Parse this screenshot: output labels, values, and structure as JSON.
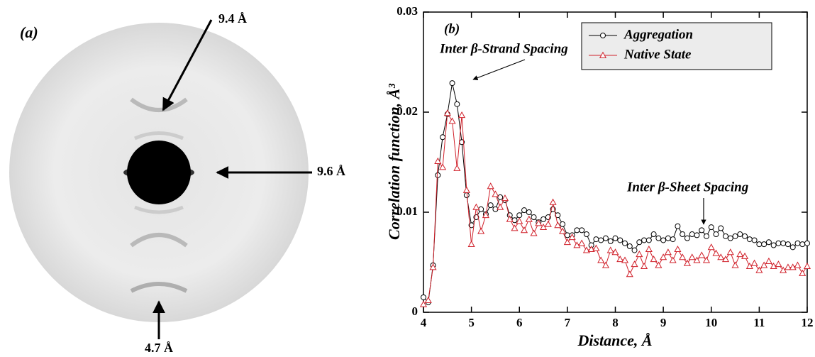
{
  "panel_a": {
    "label": "(a)",
    "annotations": [
      "9.4 Å",
      "9.6 Å",
      "4.7 Å"
    ]
  },
  "chart_data": {
    "type": "line",
    "panel_label": "(b)",
    "x_label": "Distance, Å",
    "y_label": "Correlation function, Å³",
    "annotations": [
      "Inter β-Strand Spacing",
      "Inter β-Sheet Spacing"
    ],
    "xlim": [
      4,
      12
    ],
    "xticks": [
      4,
      5,
      6,
      7,
      8,
      9,
      10,
      11,
      12
    ],
    "ylim": [
      0,
      0.03
    ],
    "yticks": [
      0,
      0.01,
      0.02,
      0.03
    ],
    "legend": "upper right",
    "x": [
      4.0,
      4.1,
      4.2,
      4.3,
      4.4,
      4.5,
      4.6,
      4.7,
      4.8,
      4.9,
      5.0,
      5.1,
      5.2,
      5.3,
      5.4,
      5.5,
      5.6,
      5.7,
      5.8,
      5.9,
      6.0,
      6.1,
      6.2,
      6.3,
      6.4,
      6.5,
      6.6,
      6.7,
      6.8,
      6.9,
      7.0,
      7.1,
      7.2,
      7.3,
      7.4,
      7.5,
      7.6,
      7.7,
      7.8,
      7.9,
      8.0,
      8.1,
      8.2,
      8.3,
      8.4,
      8.5,
      8.6,
      8.7,
      8.8,
      8.9,
      9.0,
      9.1,
      9.2,
      9.3,
      9.4,
      9.5,
      9.6,
      9.7,
      9.8,
      9.9,
      10.0,
      10.1,
      10.2,
      10.3,
      10.4,
      10.5,
      10.6,
      10.7,
      10.8,
      10.9,
      11.0,
      11.1,
      11.2,
      11.3,
      11.4,
      11.5,
      11.6,
      11.7,
      11.8,
      11.9,
      12.0
    ],
    "series": [
      {
        "name": "Aggregation",
        "color": "#000000",
        "marker": "circle",
        "values": [
          0.0015,
          0.001,
          0.0047,
          0.0137,
          0.0175,
          0.0198,
          0.0229,
          0.0208,
          0.017,
          0.0117,
          0.0087,
          0.0095,
          0.0103,
          0.0098,
          0.0107,
          0.0103,
          0.0115,
          0.0112,
          0.0097,
          0.0092,
          0.0097,
          0.0102,
          0.01,
          0.0095,
          0.009,
          0.0093,
          0.0095,
          0.0103,
          0.0097,
          0.0088,
          0.0077,
          0.0077,
          0.0082,
          0.0082,
          0.0078,
          0.0067,
          0.0073,
          0.0072,
          0.0074,
          0.0071,
          0.0074,
          0.0072,
          0.0069,
          0.0066,
          0.0062,
          0.007,
          0.0072,
          0.0072,
          0.0078,
          0.0074,
          0.0072,
          0.0074,
          0.0073,
          0.0086,
          0.0078,
          0.0074,
          0.0078,
          0.0077,
          0.0082,
          0.0076,
          0.0085,
          0.0078,
          0.0084,
          0.0076,
          0.0074,
          0.0076,
          0.0078,
          0.0076,
          0.0073,
          0.0072,
          0.0068,
          0.0068,
          0.007,
          0.0067,
          0.0069,
          0.0069,
          0.0068,
          0.0065,
          0.0069,
          0.0068,
          0.0069
        ]
      },
      {
        "name": "Native State",
        "color": "#d0202a",
        "marker": "triangle",
        "values": [
          0.0008,
          0.0012,
          0.0045,
          0.0151,
          0.0145,
          0.0199,
          0.0191,
          0.0144,
          0.0197,
          0.0122,
          0.0068,
          0.0105,
          0.0081,
          0.0097,
          0.0126,
          0.0118,
          0.0105,
          0.0114,
          0.0093,
          0.0084,
          0.0091,
          0.0082,
          0.0093,
          0.0079,
          0.0089,
          0.0085,
          0.0088,
          0.011,
          0.0087,
          0.0081,
          0.007,
          0.0075,
          0.0067,
          0.0069,
          0.0062,
          0.0063,
          0.0064,
          0.0052,
          0.0047,
          0.0062,
          0.006,
          0.0053,
          0.0052,
          0.0038,
          0.0048,
          0.0058,
          0.0046,
          0.0063,
          0.0053,
          0.0047,
          0.0055,
          0.006,
          0.0052,
          0.0063,
          0.0055,
          0.0049,
          0.0055,
          0.0052,
          0.0057,
          0.0052,
          0.0065,
          0.0059,
          0.0055,
          0.0053,
          0.006,
          0.0047,
          0.0058,
          0.0056,
          0.0046,
          0.0049,
          0.0042,
          0.0047,
          0.0051,
          0.0046,
          0.0048,
          0.0042,
          0.0045,
          0.0045,
          0.0047,
          0.0039,
          0.0046
        ]
      }
    ]
  }
}
